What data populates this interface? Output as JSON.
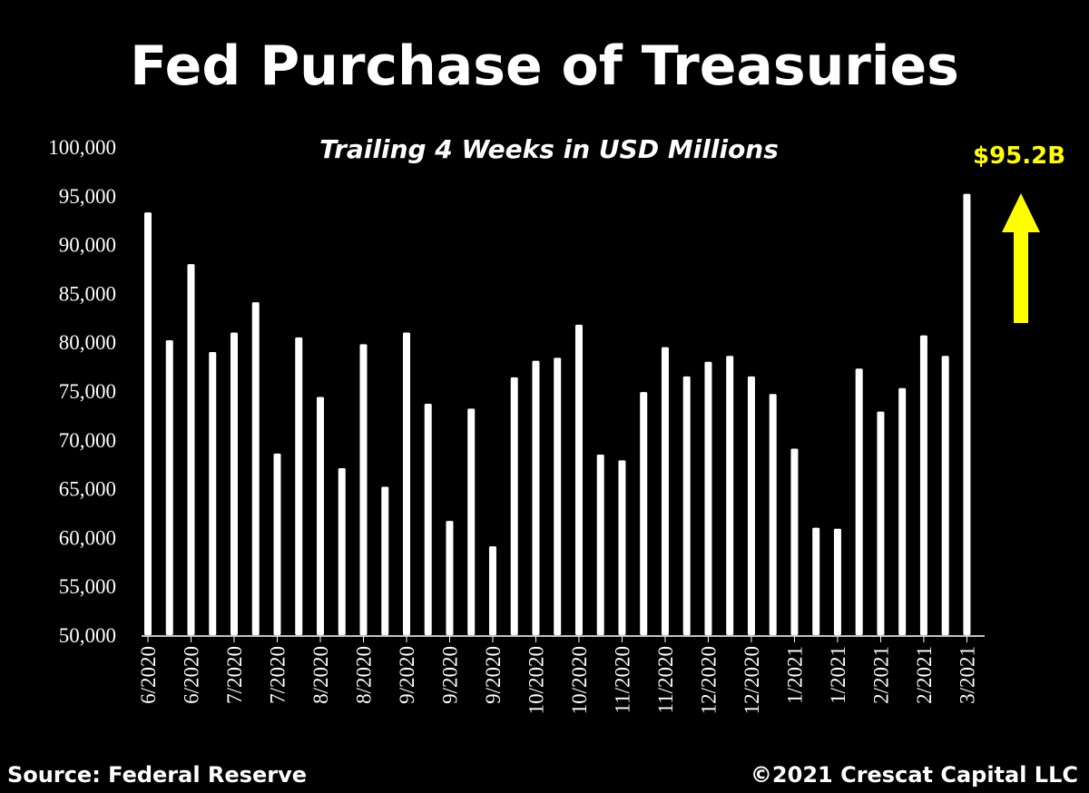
{
  "header": {
    "title": "Fed Purchase of Treasuries",
    "subtitle": "Trailing 4 Weeks in USD Millions"
  },
  "annotation": {
    "callout_text": "$95.2B",
    "callout_color": "#ffff00",
    "arrow_icon": "up-arrow-icon"
  },
  "footer": {
    "source": "Source: Federal Reserve",
    "copyright": "©2021 Crescat Capital LLC"
  },
  "chart_data": {
    "type": "bar",
    "title": "Fed Purchase of Treasuries",
    "subtitle": "Trailing 4 Weeks in USD Millions",
    "xlabel": "",
    "ylabel": "",
    "ylim": [
      50000,
      100000
    ],
    "y_ticks": [
      "50,000",
      "55,000",
      "60,000",
      "65,000",
      "70,000",
      "75,000",
      "80,000",
      "85,000",
      "90,000",
      "95,000",
      "100,000"
    ],
    "x_tick_labels": [
      "6/2020",
      "6/2020",
      "7/2020",
      "7/2020",
      "8/2020",
      "8/2020",
      "9/2020",
      "9/2020",
      "9/2020",
      "10/2020",
      "10/2020",
      "11/2020",
      "11/2020",
      "12/2020",
      "12/2020",
      "1/2021",
      "1/2021",
      "2/2021",
      "2/2021",
      "3/2021"
    ],
    "values": [
      93300,
      80200,
      88000,
      79000,
      81000,
      84100,
      68600,
      80500,
      74400,
      67100,
      79800,
      65200,
      81000,
      73700,
      61700,
      73200,
      59100,
      76400,
      78100,
      78400,
      81800,
      68500,
      67900,
      74900,
      79500,
      76500,
      78000,
      78600,
      76500,
      74700,
      69100,
      61000,
      60900,
      77300,
      72900,
      75300,
      80700,
      78600,
      95200
    ],
    "bar_color": "#ffffff",
    "background": "#000000",
    "grid": false,
    "legend": "none"
  }
}
